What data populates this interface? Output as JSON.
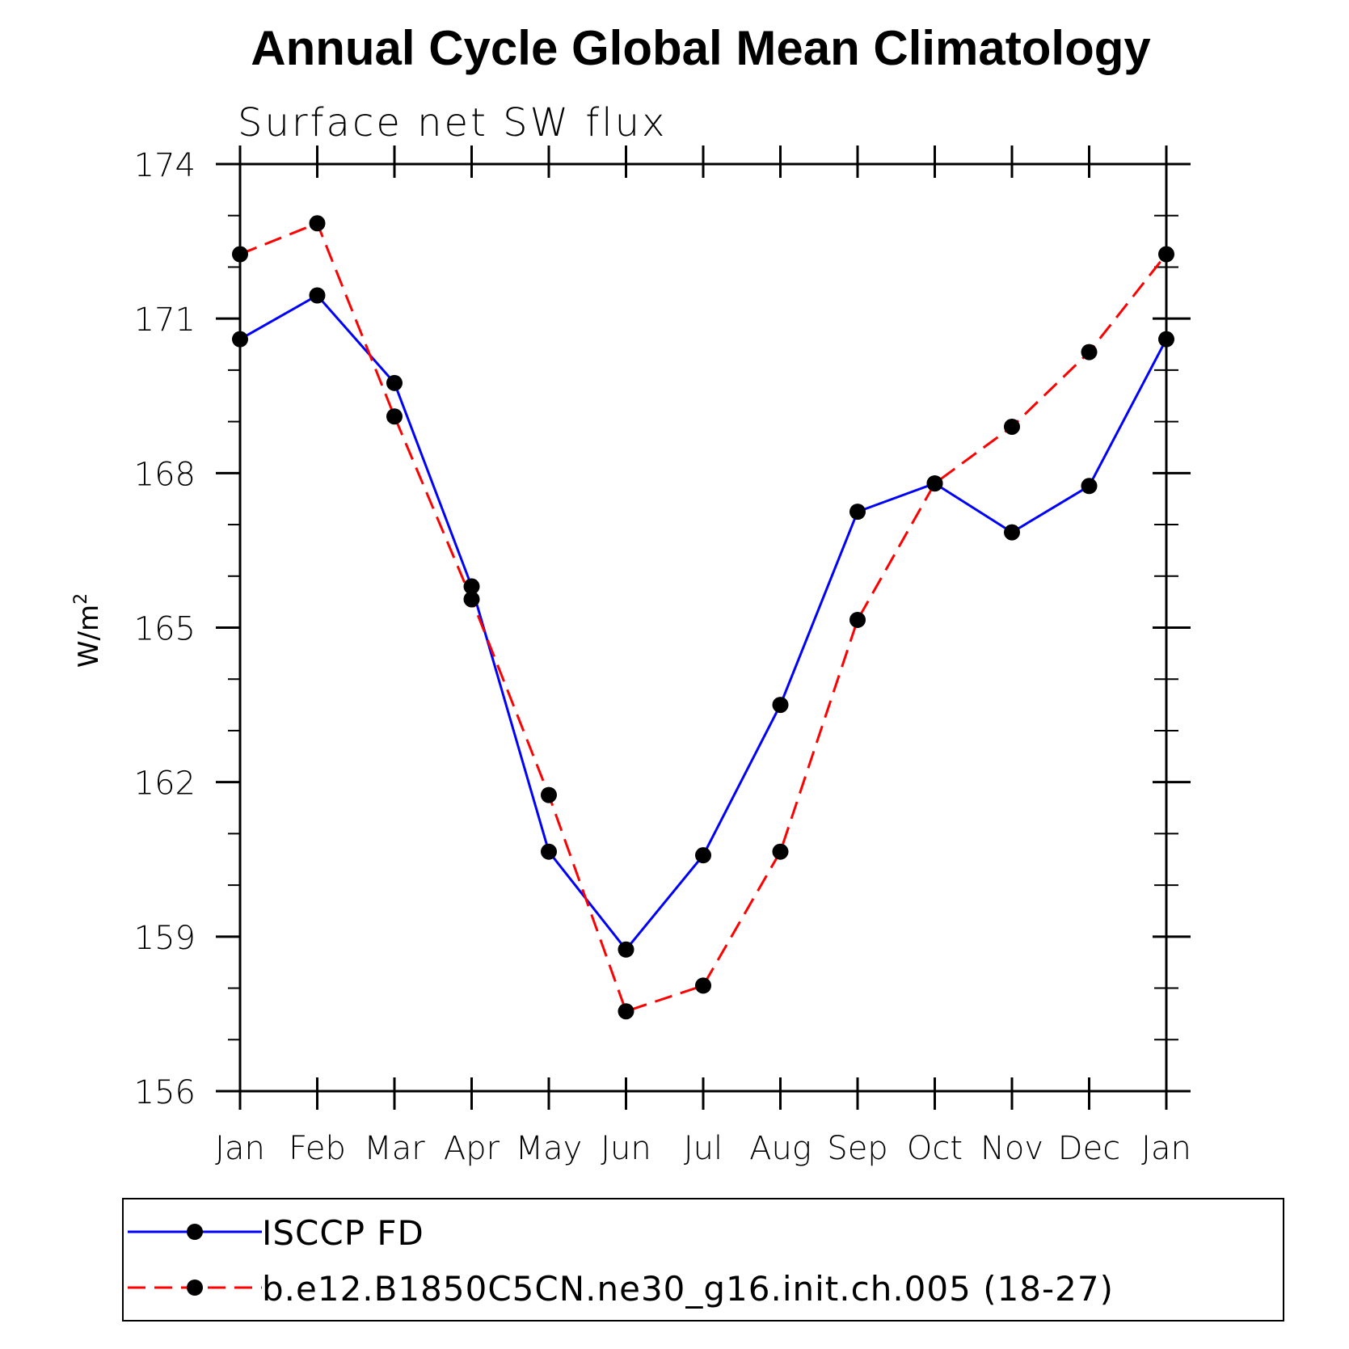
{
  "chart_data": {
    "type": "line",
    "title": "Annual Cycle Global Mean Climatology",
    "subtitle": "Surface net SW flux",
    "ylabel": "W/m",
    "ylabel_superscript": "2",
    "xlabel": "",
    "categories": [
      "Jan",
      "Feb",
      "Mar",
      "Apr",
      "May",
      "Jun",
      "Jul",
      "Aug",
      "Sep",
      "Oct",
      "Nov",
      "Dec",
      "Jan"
    ],
    "ylim": [
      156,
      174
    ],
    "yticks": [
      156,
      159,
      162,
      165,
      168,
      171,
      174
    ],
    "grid": false,
    "legend_position": "bottom",
    "series": [
      {
        "name": "ISCCP FD",
        "color": "#0000ff",
        "dash": "solid",
        "values": [
          170.6,
          171.45,
          169.75,
          165.8,
          160.65,
          158.75,
          160.58,
          163.5,
          167.25,
          167.8,
          166.85,
          167.75,
          170.6
        ]
      },
      {
        "name": "b.e12.B1850C5CN.ne30_g16.init.ch.005 (18-27)",
        "color": "#ff0000",
        "dash": "dashed",
        "values": [
          172.25,
          172.85,
          169.1,
          165.55,
          161.75,
          157.55,
          158.05,
          160.65,
          165.15,
          167.8,
          168.9,
          170.35,
          172.25
        ]
      }
    ]
  }
}
